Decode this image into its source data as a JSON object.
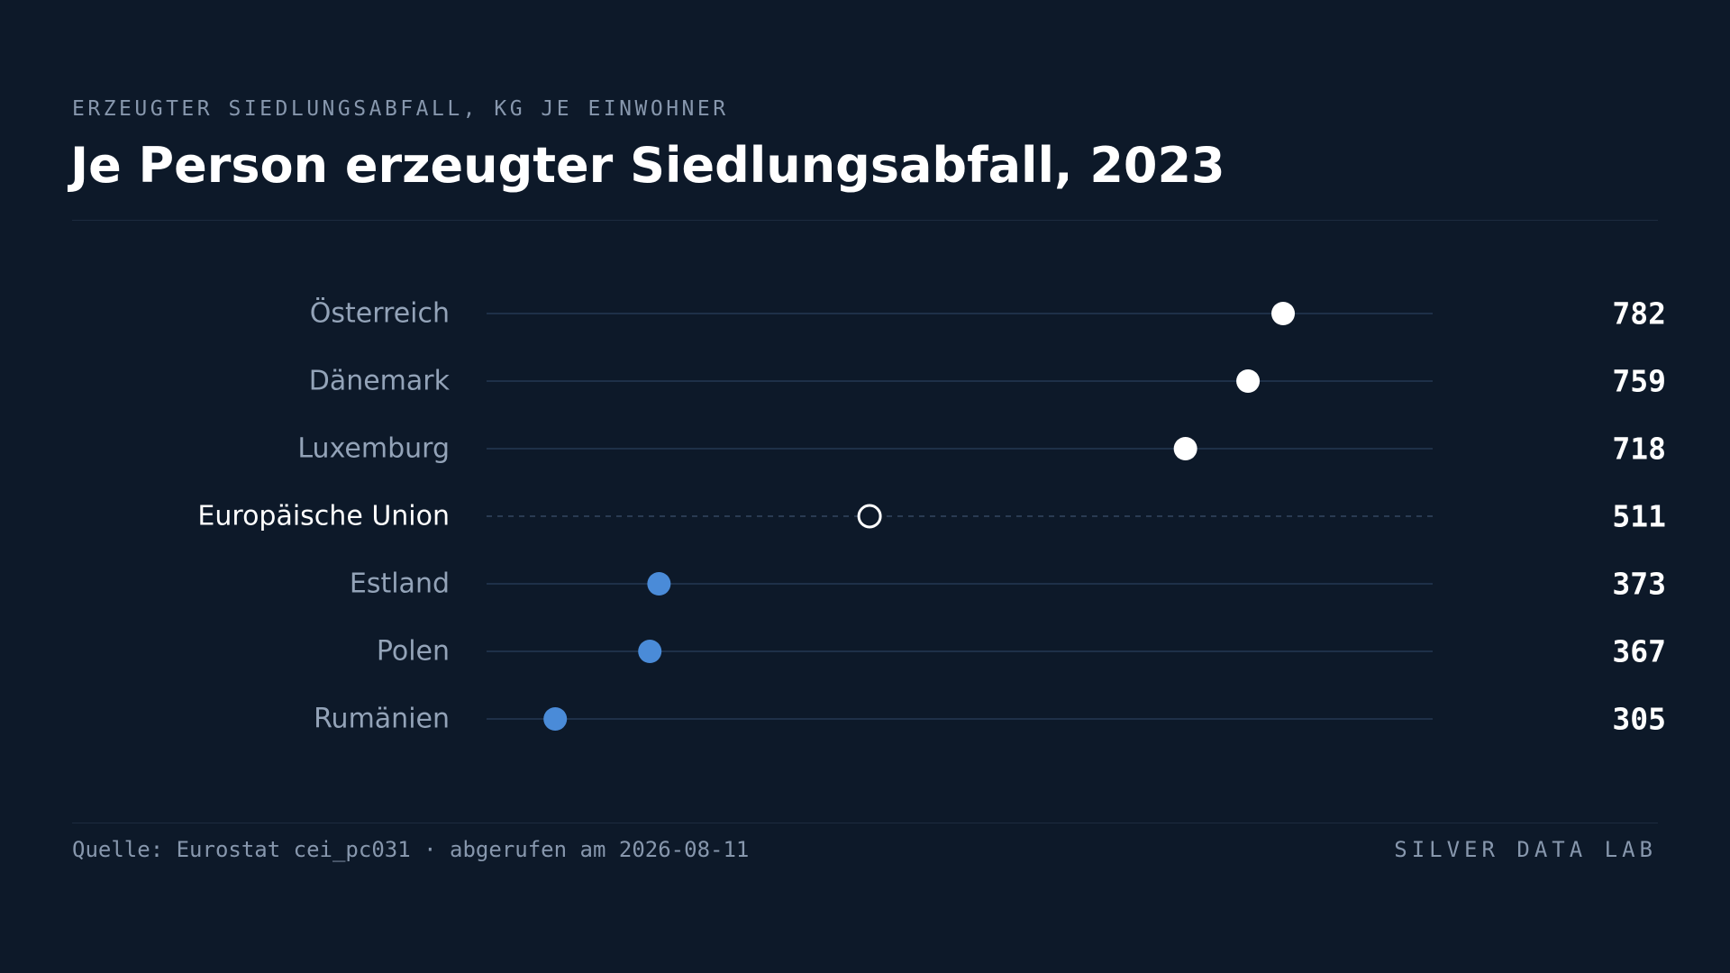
{
  "header": {
    "eyebrow": "ERZEUGTER SIEDLUNGSABFALL, KG JE EINWOHNER",
    "title": "Je Person erzeugter Siedlungsabfall, 2023"
  },
  "footer": {
    "source": "Quelle: Eurostat cei_pc031 · abgerufen am 2026-08-11",
    "brand": "SILVER DATA LAB"
  },
  "colors": {
    "background": "#0d1929",
    "track": "#1e3048",
    "high": "#ffffff",
    "low": "#4a8bd8",
    "reference": "#ffffff",
    "label": "#93a3b8",
    "label_reference": "#ffffff",
    "value": "#ffffff"
  },
  "chart_data": {
    "type": "scatter",
    "title": "Je Person erzeugter Siedlungsabfall, 2023",
    "subtitle": "ERZEUGTER SIEDLUNGSABFALL, KG JE EINWOHNER",
    "xlim": [
      260,
      880
    ],
    "grid": false,
    "categories": [
      "Österreich",
      "Dänemark",
      "Luxemburg",
      "Europäische Union",
      "Estland",
      "Polen",
      "Rumänien"
    ],
    "values": [
      782,
      759,
      718,
      511,
      373,
      367,
      305
    ],
    "value_labels": [
      "782",
      "759",
      "718",
      "511",
      "373",
      "367",
      "305"
    ],
    "point_styles": [
      "high",
      "high",
      "high",
      "reference",
      "low",
      "low",
      "low"
    ]
  }
}
